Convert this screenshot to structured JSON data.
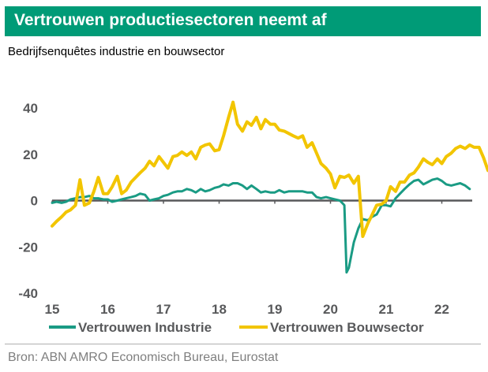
{
  "header": {
    "title": "Vertrouwen productiesectoren neemt af",
    "subtitle": "Bedrijfsenquêtes industrie en bouwsector"
  },
  "footer": {
    "source": "Bron: ABN AMRO Economisch Bureau, Eurostat"
  },
  "colors": {
    "title_bg": "#009b77",
    "industrie": "#1a9b84",
    "bouwsector": "#f2c500",
    "axis": "#58595b"
  },
  "chart_data": {
    "type": "line",
    "title": "Vertrouwen productiesectoren neemt af",
    "subtitle": "Bedrijfsenquêtes industrie en bouwsector",
    "xlabel": "",
    "ylabel": "",
    "xlim": [
      2015.0,
      2022.5
    ],
    "ylim": [
      -40,
      40
    ],
    "grid": false,
    "legend_position": "bottom",
    "x_ticks": [
      {
        "value": 2015,
        "label": "15"
      },
      {
        "value": 2016,
        "label": "16"
      },
      {
        "value": 2017,
        "label": "17"
      },
      {
        "value": 2018,
        "label": "18"
      },
      {
        "value": 2019,
        "label": "19"
      },
      {
        "value": 2020,
        "label": "20"
      },
      {
        "value": 2021,
        "label": "21"
      },
      {
        "value": 2022,
        "label": "22"
      }
    ],
    "y_ticks": [
      {
        "value": 40,
        "label": "40"
      },
      {
        "value": 20,
        "label": "20"
      },
      {
        "value": 0,
        "label": "0"
      },
      {
        "value": -20,
        "label": "-20"
      },
      {
        "value": -40,
        "label": "-40"
      }
    ],
    "series": [
      {
        "name": "Vertrouwen Industrie",
        "color": "#1a9b84",
        "points": [
          [
            2015.0,
            -1
          ],
          [
            2015.08,
            -0.5
          ],
          [
            2015.17,
            -1
          ],
          [
            2015.25,
            -0.5
          ],
          [
            2015.33,
            0.5
          ],
          [
            2015.42,
            1
          ],
          [
            2015.5,
            1.5
          ],
          [
            2015.58,
            1.5
          ],
          [
            2015.67,
            2
          ],
          [
            2015.75,
            1
          ],
          [
            2015.83,
            1
          ],
          [
            2015.92,
            0.5
          ],
          [
            2016.0,
            0.5
          ],
          [
            2016.08,
            -0.5
          ],
          [
            2016.17,
            0
          ],
          [
            2016.25,
            0.5
          ],
          [
            2016.33,
            1
          ],
          [
            2016.42,
            1.5
          ],
          [
            2016.5,
            2
          ],
          [
            2016.58,
            3
          ],
          [
            2016.67,
            2.5
          ],
          [
            2016.75,
            0
          ],
          [
            2016.83,
            0.5
          ],
          [
            2016.92,
            1
          ],
          [
            2017.0,
            2
          ],
          [
            2017.08,
            2.5
          ],
          [
            2017.17,
            3.5
          ],
          [
            2017.25,
            4
          ],
          [
            2017.33,
            4
          ],
          [
            2017.42,
            5
          ],
          [
            2017.5,
            4.5
          ],
          [
            2017.58,
            3.5
          ],
          [
            2017.67,
            5
          ],
          [
            2017.75,
            4
          ],
          [
            2017.83,
            4.5
          ],
          [
            2017.92,
            5.5
          ],
          [
            2018.0,
            6
          ],
          [
            2018.08,
            7
          ],
          [
            2018.17,
            6.5
          ],
          [
            2018.25,
            7.5
          ],
          [
            2018.33,
            7.5
          ],
          [
            2018.42,
            6.5
          ],
          [
            2018.5,
            5
          ],
          [
            2018.58,
            6.5
          ],
          [
            2018.67,
            5
          ],
          [
            2018.75,
            3.5
          ],
          [
            2018.83,
            4
          ],
          [
            2018.92,
            3.5
          ],
          [
            2019.0,
            3.5
          ],
          [
            2019.08,
            4.5
          ],
          [
            2019.17,
            3.5
          ],
          [
            2019.25,
            4
          ],
          [
            2019.33,
            4
          ],
          [
            2019.42,
            4
          ],
          [
            2019.5,
            4
          ],
          [
            2019.58,
            3.5
          ],
          [
            2019.67,
            3.5
          ],
          [
            2019.75,
            1.5
          ],
          [
            2019.83,
            1
          ],
          [
            2019.92,
            1.5
          ],
          [
            2020.0,
            1
          ],
          [
            2020.08,
            0.5
          ],
          [
            2020.17,
            0
          ],
          [
            2020.25,
            -2
          ],
          [
            2020.29,
            -31
          ],
          [
            2020.33,
            -29
          ],
          [
            2020.42,
            -18
          ],
          [
            2020.5,
            -12
          ],
          [
            2020.58,
            -8
          ],
          [
            2020.67,
            -8.5
          ],
          [
            2020.75,
            -7
          ],
          [
            2020.83,
            -6
          ],
          [
            2020.92,
            -2
          ],
          [
            2021.0,
            -2
          ],
          [
            2021.08,
            -2.5
          ],
          [
            2021.17,
            1
          ],
          [
            2021.25,
            3
          ],
          [
            2021.33,
            5
          ],
          [
            2021.42,
            7
          ],
          [
            2021.5,
            8.5
          ],
          [
            2021.58,
            9
          ],
          [
            2021.67,
            7
          ],
          [
            2021.75,
            8
          ],
          [
            2021.83,
            9
          ],
          [
            2021.92,
            9.5
          ],
          [
            2022.0,
            8.5
          ],
          [
            2022.08,
            7
          ],
          [
            2022.17,
            6.5
          ],
          [
            2022.25,
            7
          ],
          [
            2022.33,
            7.5
          ],
          [
            2022.42,
            6.5
          ],
          [
            2022.5,
            5
          ]
        ]
      },
      {
        "name": "Vertrouwen Bouwsector",
        "color": "#f2c500",
        "points": [
          [
            2015.0,
            -11
          ],
          [
            2015.08,
            -9
          ],
          [
            2015.17,
            -7
          ],
          [
            2015.25,
            -5
          ],
          [
            2015.33,
            -4
          ],
          [
            2015.42,
            -2
          ],
          [
            2015.5,
            9
          ],
          [
            2015.58,
            -2
          ],
          [
            2015.67,
            -1
          ],
          [
            2015.75,
            4
          ],
          [
            2015.83,
            10
          ],
          [
            2015.92,
            3
          ],
          [
            2016.0,
            3
          ],
          [
            2016.08,
            6
          ],
          [
            2016.17,
            10.5
          ],
          [
            2016.25,
            3
          ],
          [
            2016.33,
            4.5
          ],
          [
            2016.42,
            8
          ],
          [
            2016.5,
            10
          ],
          [
            2016.58,
            12
          ],
          [
            2016.67,
            14
          ],
          [
            2016.75,
            17
          ],
          [
            2016.83,
            15
          ],
          [
            2016.92,
            19
          ],
          [
            2017.0,
            16.5
          ],
          [
            2017.08,
            14
          ],
          [
            2017.17,
            19
          ],
          [
            2017.25,
            19.5
          ],
          [
            2017.33,
            21
          ],
          [
            2017.42,
            19.5
          ],
          [
            2017.5,
            21
          ],
          [
            2017.58,
            18
          ],
          [
            2017.67,
            23
          ],
          [
            2017.75,
            24
          ],
          [
            2017.83,
            24.5
          ],
          [
            2017.92,
            21.5
          ],
          [
            2018.0,
            22
          ],
          [
            2018.08,
            28
          ],
          [
            2018.17,
            36
          ],
          [
            2018.25,
            42.5
          ],
          [
            2018.33,
            33
          ],
          [
            2018.42,
            30
          ],
          [
            2018.5,
            34
          ],
          [
            2018.58,
            32.5
          ],
          [
            2018.67,
            36
          ],
          [
            2018.75,
            31
          ],
          [
            2018.83,
            35
          ],
          [
            2018.92,
            33
          ],
          [
            2019.0,
            33
          ],
          [
            2019.08,
            30.5
          ],
          [
            2019.17,
            30
          ],
          [
            2019.25,
            29
          ],
          [
            2019.33,
            28
          ],
          [
            2019.42,
            27
          ],
          [
            2019.5,
            28
          ],
          [
            2019.58,
            23
          ],
          [
            2019.67,
            25
          ],
          [
            2019.75,
            20.5
          ],
          [
            2019.83,
            16
          ],
          [
            2019.92,
            14
          ],
          [
            2020.0,
            11.5
          ],
          [
            2020.08,
            5.5
          ],
          [
            2020.17,
            10.5
          ],
          [
            2020.25,
            10
          ],
          [
            2020.33,
            11
          ],
          [
            2020.42,
            7.5
          ],
          [
            2020.5,
            10.5
          ],
          [
            2020.58,
            -15.5
          ],
          [
            2020.67,
            -10
          ],
          [
            2020.75,
            -6
          ],
          [
            2020.83,
            -2
          ],
          [
            2020.92,
            -1.5
          ],
          [
            2021.0,
            0
          ],
          [
            2021.08,
            6
          ],
          [
            2021.17,
            4
          ],
          [
            2021.25,
            8
          ],
          [
            2021.33,
            8
          ],
          [
            2021.42,
            11
          ],
          [
            2021.5,
            12
          ],
          [
            2021.58,
            14.5
          ],
          [
            2021.67,
            18
          ],
          [
            2021.75,
            16.5
          ],
          [
            2021.83,
            15.5
          ],
          [
            2021.92,
            18
          ],
          [
            2022.0,
            16
          ],
          [
            2022.08,
            19
          ],
          [
            2022.17,
            20.5
          ],
          [
            2022.25,
            22.5
          ],
          [
            2022.33,
            23.5
          ],
          [
            2022.42,
            22.5
          ],
          [
            2022.5,
            24
          ],
          [
            2022.58,
            23
          ],
          [
            2022.67,
            23
          ],
          [
            2022.75,
            18.5
          ],
          [
            2022.83,
            13
          ],
          [
            2022.92,
            14
          ]
        ]
      }
    ]
  }
}
